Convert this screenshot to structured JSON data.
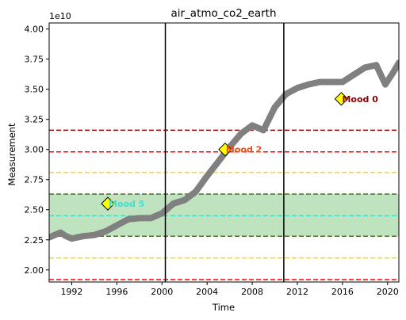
{
  "chart_data": {
    "type": "line",
    "title": "air_atmo_co2_earth",
    "xlabel": "Time",
    "ylabel": "Measurement",
    "y_offset_label": "1e10",
    "xlim": [
      1990.0,
      2021.0
    ],
    "ylim": [
      1.9,
      4.05
    ],
    "x_ticks": [
      1992,
      1996,
      2000,
      2004,
      2008,
      2012,
      2016,
      2020
    ],
    "y_ticks": [
      2.0,
      2.25,
      2.5,
      2.75,
      3.0,
      3.25,
      3.5,
      3.75,
      4.0
    ],
    "y_tick_labels": [
      "2.00",
      "2.25",
      "2.50",
      "2.75",
      "3.00",
      "3.25",
      "3.50",
      "3.75",
      "4.00"
    ],
    "grid": false,
    "series": [
      {
        "color": "#808080",
        "x": [
          1990.0,
          1990.5,
          1991.0,
          1991.5,
          1992.0,
          1992.5,
          1993.0,
          1994.0,
          1995.0,
          1996.0,
          1997.0,
          1998.0,
          1999.0,
          2000.0,
          2001.0,
          2002.0,
          2003.0,
          2004.0,
          2005.0,
          2006.0,
          2007.0,
          2008.0,
          2009.0,
          2010.0,
          2011.0,
          2012.0,
          2013.0,
          2014.0,
          2015.0,
          2016.0,
          2017.0,
          2018.0,
          2019.0,
          2019.8,
          2020.5,
          2021.0
        ],
        "y": [
          2.27,
          2.29,
          2.31,
          2.28,
          2.26,
          2.27,
          2.28,
          2.29,
          2.32,
          2.37,
          2.42,
          2.43,
          2.43,
          2.47,
          2.55,
          2.58,
          2.65,
          2.78,
          2.9,
          3.02,
          3.13,
          3.2,
          3.16,
          3.35,
          3.46,
          3.51,
          3.54,
          3.56,
          3.56,
          3.56,
          3.62,
          3.68,
          3.7,
          3.54,
          3.64,
          3.72
        ]
      }
    ],
    "vertical_lines": [
      {
        "x": 2000.3,
        "color": "#000000"
      },
      {
        "x": 2010.8,
        "color": "#000000"
      }
    ],
    "shaded_band": {
      "y0": 2.28,
      "y1": 2.63,
      "color": "#2ca02c",
      "opacity": 0.3
    },
    "horizontal_lines": [
      {
        "y": 3.16,
        "color": "#8b0000"
      },
      {
        "y": 2.98,
        "color": "#ff0000"
      },
      {
        "y": 2.81,
        "color": "#ffd700"
      },
      {
        "y": 2.63,
        "color": "#556b2f"
      },
      {
        "y": 2.45,
        "color": "#40e0d0"
      },
      {
        "y": 2.28,
        "color": "#556b2f"
      },
      {
        "y": 2.1,
        "color": "#ffd700"
      },
      {
        "y": 1.92,
        "color": "#ff0000"
      }
    ],
    "annotations": [
      {
        "x": 1995.2,
        "y": 2.55,
        "label": "Mood 5",
        "color": "#40e0d0"
      },
      {
        "x": 2005.6,
        "y": 3.0,
        "label": "Mood 2",
        "color": "#ff4500"
      },
      {
        "x": 2015.9,
        "y": 3.42,
        "label": "Mood 0",
        "color": "#8b0000"
      }
    ]
  }
}
